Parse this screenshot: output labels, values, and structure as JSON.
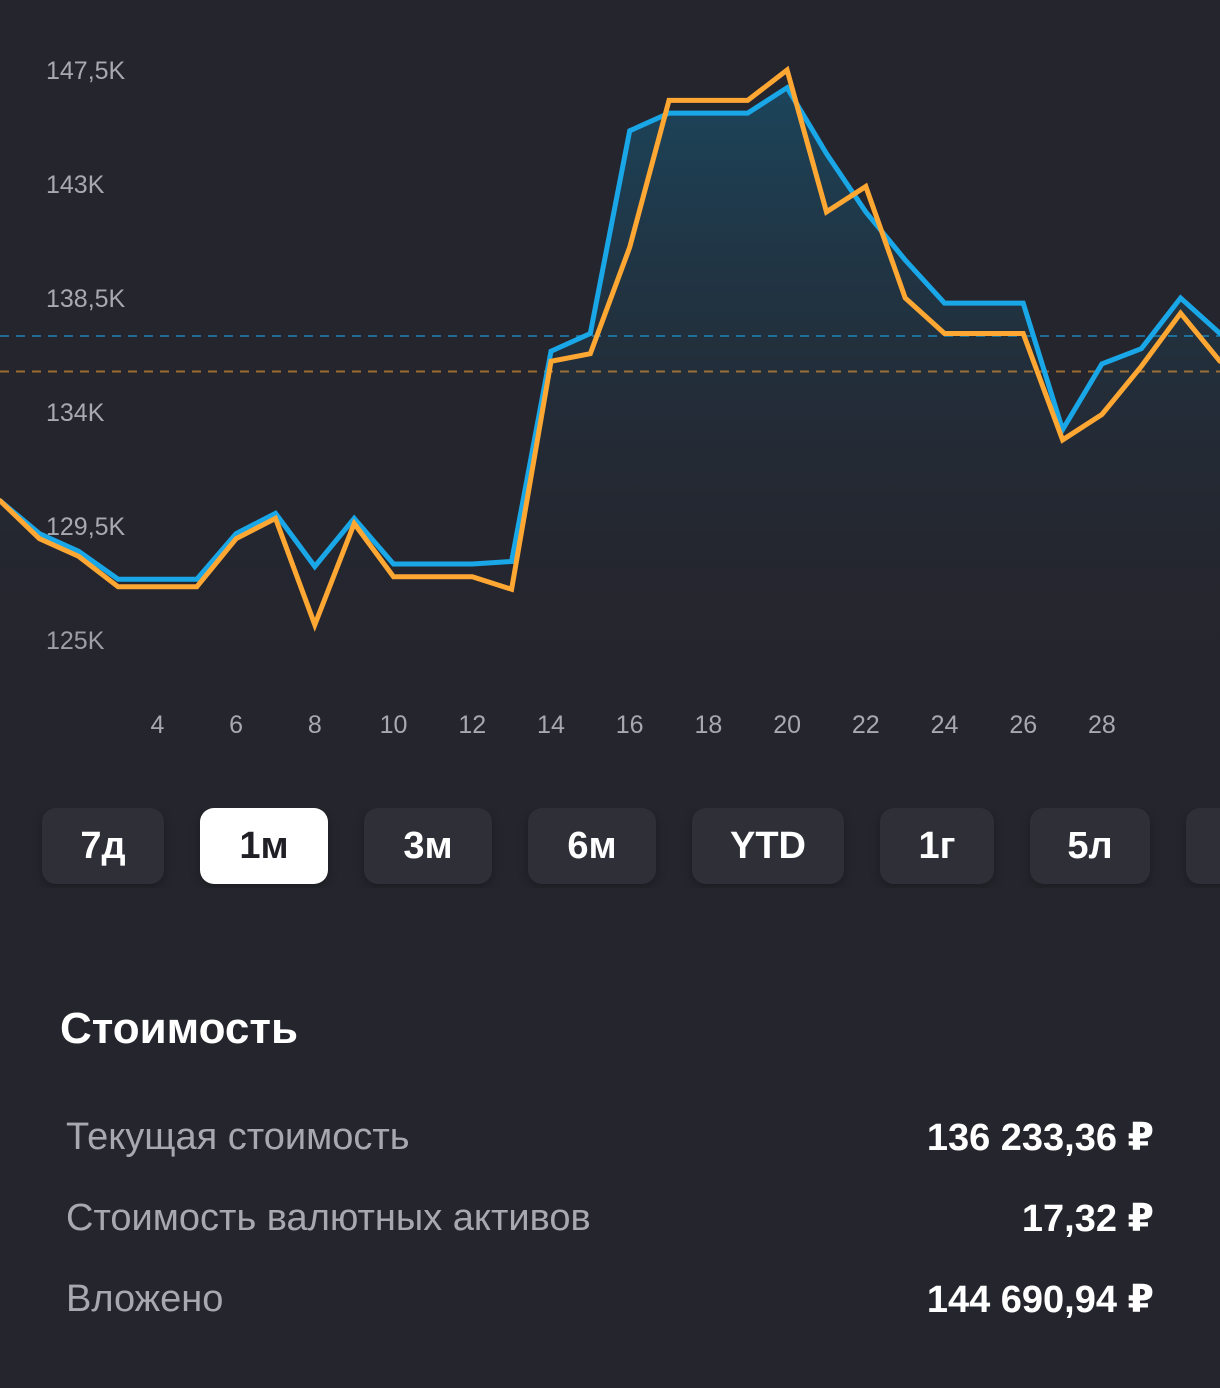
{
  "chart_data": {
    "type": "line",
    "y_ticks": [
      "147,5K",
      "143K",
      "138,5K",
      "134K",
      "129,5K",
      "125K"
    ],
    "y_tick_values": [
      147500,
      143000,
      138500,
      134000,
      129500,
      125000
    ],
    "ylim": [
      125000,
      147500
    ],
    "x_ticks": [
      4,
      6,
      8,
      10,
      12,
      14,
      16,
      18,
      20,
      22,
      24,
      26,
      28
    ],
    "xlim": [
      0,
      31
    ],
    "series": [
      {
        "color": "#1aa7e8",
        "fill": true,
        "reference_line": 137000,
        "x": [
          0,
          1,
          2,
          3,
          4,
          5,
          6,
          7,
          8,
          9,
          10,
          11,
          12,
          13,
          14,
          15,
          16,
          17,
          18,
          19,
          20,
          21,
          22,
          23,
          24,
          25,
          26,
          27,
          28,
          29,
          30,
          31
        ],
        "values": [
          130500,
          129200,
          128500,
          127400,
          127400,
          127400,
          129200,
          130000,
          127900,
          129800,
          128000,
          128000,
          128000,
          128100,
          136400,
          137100,
          145100,
          145800,
          145800,
          145800,
          146800,
          144200,
          141900,
          140000,
          138300,
          138300,
          138300,
          133300,
          135900,
          136500,
          138500,
          137100
        ]
      },
      {
        "color": "#ffa733",
        "fill": false,
        "reference_line": 135600,
        "x": [
          0,
          1,
          2,
          3,
          4,
          5,
          6,
          7,
          8,
          9,
          10,
          11,
          12,
          13,
          14,
          15,
          16,
          17,
          18,
          19,
          20,
          21,
          22,
          23,
          24,
          25,
          26,
          27,
          28,
          29,
          30,
          31
        ],
        "values": [
          130500,
          129000,
          128300,
          127100,
          127100,
          127100,
          129000,
          129800,
          125600,
          129600,
          127500,
          127500,
          127500,
          127000,
          136000,
          136300,
          140500,
          146300,
          146300,
          146300,
          147500,
          141900,
          142900,
          138500,
          137100,
          137100,
          137100,
          132900,
          133900,
          135800,
          137900,
          136000
        ]
      }
    ]
  },
  "periods": [
    {
      "label": "7д",
      "active": false
    },
    {
      "label": "1м",
      "active": true
    },
    {
      "label": "3м",
      "active": false
    },
    {
      "label": "6м",
      "active": false
    },
    {
      "label": "YTD",
      "active": false
    },
    {
      "label": "1г",
      "active": false
    },
    {
      "label": "5л",
      "active": false
    }
  ],
  "summary": {
    "title": "Стоимость",
    "rows": [
      {
        "label": "Текущая стоимость",
        "value": "136 233,36 ₽"
      },
      {
        "label": "Стоимость валютных активов",
        "value": "17,32 ₽"
      },
      {
        "label": "Вложено",
        "value": "144 690,94 ₽"
      }
    ]
  }
}
